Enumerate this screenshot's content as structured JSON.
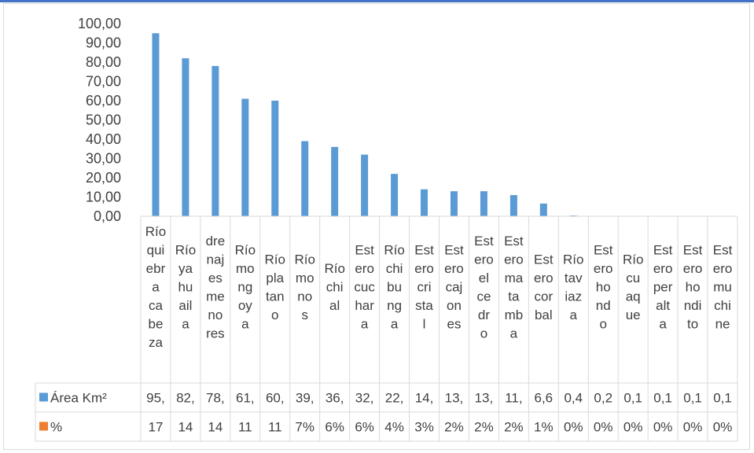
{
  "chart_data": {
    "type": "bar",
    "title": "",
    "xlabel": "",
    "ylabel": "",
    "ylim": [
      0,
      100
    ],
    "y_ticks": [
      "0,00",
      "10,00",
      "20,00",
      "30,00",
      "40,00",
      "50,00",
      "60,00",
      "70,00",
      "80,00",
      "90,00",
      "100,00"
    ],
    "grid": false,
    "legend": "table",
    "categories": [
      "Río quiebra cabeza",
      "Río yahuaila",
      "drenajes menores",
      "Río mongoya",
      "Río platano",
      "Río monos",
      "Río chical",
      "Estero cucharaa",
      "Río chibunga",
      "Estero cristal",
      "Estero cajones",
      "Estero el cedro",
      "Estero matamba",
      "Estero corbal",
      "Río taviaza",
      "Estero hondo",
      "Río cuaque",
      "Estero peralta",
      "Estero hondito",
      "Estero muchine"
    ],
    "category_wraps": [
      [
        "Río",
        "qui",
        "ebr",
        "a",
        "ca",
        "be",
        "za"
      ],
      [
        "Río",
        "ya",
        "hu",
        "ail",
        "a"
      ],
      [
        "dre",
        "naj",
        "es",
        "me",
        "no",
        "res"
      ],
      [
        "Río",
        "mo",
        "ng",
        "oy",
        "a"
      ],
      [
        "Río",
        "pla",
        "tan",
        "o"
      ],
      [
        "Río",
        "mo",
        "no",
        "s"
      ],
      [
        "Río",
        "chi",
        "al"
      ],
      [
        "Est",
        "ero",
        "cuc",
        "har",
        "a"
      ],
      [
        "Río",
        "chi",
        "bu",
        "ng",
        "a"
      ],
      [
        "Est",
        "ero",
        "cri",
        "sta",
        "l"
      ],
      [
        "Est",
        "ero",
        "caj",
        "on",
        "es"
      ],
      [
        "Est",
        "ero",
        "el",
        "ce",
        "dr",
        "o"
      ],
      [
        "Est",
        "ero",
        "ma",
        "ta",
        "mb",
        "a"
      ],
      [
        "Est",
        "ero",
        "cor",
        "bal"
      ],
      [
        "Río",
        "tav",
        "iaz",
        "a"
      ],
      [
        "Est",
        "ero",
        "ho",
        "nd",
        "o"
      ],
      [
        "Río",
        "cu",
        "aq",
        "ue"
      ],
      [
        "Est",
        "ero",
        "per",
        "alt",
        "a"
      ],
      [
        "Est",
        "ero",
        "ho",
        "ndi",
        "to"
      ],
      [
        "Est",
        "ero",
        "mu",
        "chi",
        "ne"
      ]
    ],
    "series": [
      {
        "name": "Área Km²",
        "color": "#5b9bd5",
        "values": [
          95,
          82,
          78,
          61,
          60,
          39,
          36,
          32,
          22,
          14,
          13,
          13,
          11,
          6.6,
          0.4,
          0.2,
          0.1,
          0.1,
          0.1,
          0.1
        ],
        "table_values": [
          "95,",
          "82,",
          "78,",
          "61,",
          "60,",
          "39,",
          "36,",
          "32,",
          "22,",
          "14,",
          "13,",
          "13,",
          "11,",
          "6,6",
          "0,4",
          "0,2",
          "0,1",
          "0,1",
          "0,1",
          "0,1"
        ]
      },
      {
        "name": "%",
        "color": "#ed7d31",
        "values": [
          17,
          14,
          14,
          11,
          11,
          7,
          6,
          6,
          4,
          3,
          2,
          2,
          2,
          1,
          0,
          0,
          0,
          0,
          0,
          0
        ],
        "table_values": [
          "17",
          "14",
          "14",
          "11",
          "11",
          "7%",
          "6%",
          "6%",
          "4%",
          "3%",
          "2%",
          "2%",
          "2%",
          "1%",
          "0%",
          "0%",
          "0%",
          "0%",
          "0%",
          "0%"
        ]
      }
    ]
  },
  "colors": {
    "border": "#d9d9d9",
    "accent_rule": "#4472c4",
    "text": "#404040"
  }
}
